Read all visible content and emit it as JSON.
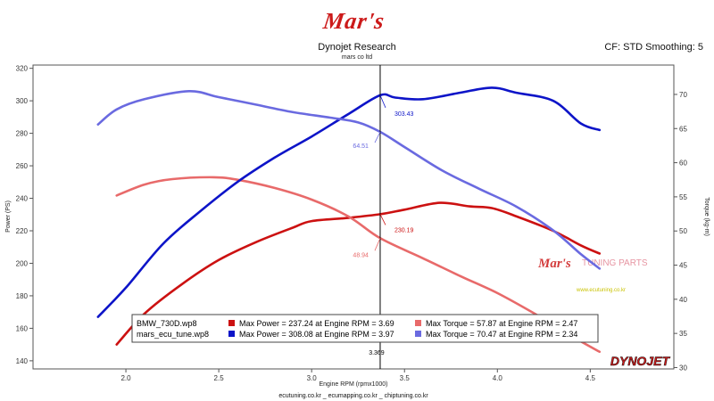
{
  "header": {
    "logo_text": "Mar's",
    "company": "Dynojet Research",
    "subtitle": "mars co ltd",
    "cf_info": "CF: STD Smoothing: 5"
  },
  "footer": {
    "websites": "ecutuning.co.kr _ ecumapping.co.kr _ chiptuning.co.kr"
  },
  "watermark": {
    "logo_text": "Mar's",
    "tuning_parts": "TUNING PARTS",
    "url": "www.ecutuning.co.kr",
    "brand": "DYNOJET"
  },
  "colors": {
    "stock_power": "#cc1111",
    "stock_torque": "#e86a6a",
    "tuned_power": "#0d14c8",
    "tuned_torque": "#6a6ae0",
    "cursor": "#000000",
    "brand_red": "#cc1a1a"
  },
  "chart_data": {
    "type": "line",
    "title": "Dynojet Research",
    "xlabel": "Engine RPM (rpmx1000)",
    "ylabel_left": "Power (PS)",
    "ylabel_right": "Torque (kg-m)",
    "xlim": [
      1.5,
      4.95
    ],
    "ylim_left": [
      135,
      322
    ],
    "ylim_right": [
      29.8,
      74.3
    ],
    "x_ticks": [
      2.0,
      2.5,
      3.0,
      3.5,
      4.0,
      4.5
    ],
    "x_tick_labels": [
      "2.0",
      "2.5",
      "3.0",
      "3.5",
      "4.0",
      "4.5"
    ],
    "y_left_ticks": [
      140,
      160,
      180,
      200,
      220,
      240,
      260,
      280,
      300,
      320
    ],
    "y_left_tick_labels": [
      "140",
      "160",
      "180",
      "200",
      "220",
      "240",
      "260",
      "280",
      "300",
      "320"
    ],
    "y_right_ticks": [
      30,
      35,
      40,
      45,
      50,
      55,
      60,
      65,
      70
    ],
    "y_right_tick_labels": [
      "30",
      "35",
      "40",
      "45",
      "50",
      "55",
      "60",
      "65",
      "70"
    ],
    "cursor": {
      "x": 3.369,
      "label": "3.369",
      "annotations": [
        {
          "text": "303.43",
          "series": "tuned_power"
        },
        {
          "text": "64.51",
          "series": "tuned_torque"
        },
        {
          "text": "230.19",
          "series": "stock_power"
        },
        {
          "text": "48.94",
          "series": "stock_torque"
        }
      ]
    },
    "legend": {
      "placement": "bottom-center",
      "rows": [
        {
          "file": "BMW_730D.wp8",
          "max_power": "Max Power = 237.24 at Engine RPM = 3.69",
          "max_torque": "Max Torque = 57.87 at Engine RPM = 2.47",
          "power_color": "#cc1111",
          "torque_color": "#e86a6a"
        },
        {
          "file": "mars_ecu_tune.wp8",
          "max_power": "Max Power = 308.08 at Engine RPM = 3.97",
          "max_torque": "Max Torque = 70.47 at Engine RPM = 2.34",
          "power_color": "#0d14c8",
          "torque_color": "#6a6ae0"
        }
      ]
    },
    "series": [
      {
        "key": "stock_power",
        "axis": "left",
        "color": "#cc1111",
        "x": [
          1.95,
          2.1,
          2.3,
          2.5,
          2.7,
          2.9,
          3.0,
          3.2,
          3.369,
          3.5,
          3.69,
          3.85,
          3.97,
          4.1,
          4.3,
          4.45,
          4.55
        ],
        "y": [
          150,
          169,
          187,
          202,
          213,
          222,
          226,
          228,
          230.19,
          233,
          237.24,
          235,
          234,
          229,
          220,
          211,
          206
        ]
      },
      {
        "key": "stock_torque",
        "axis": "right",
        "color": "#e86a6a",
        "x": [
          1.95,
          2.1,
          2.25,
          2.47,
          2.6,
          2.8,
          3.0,
          3.2,
          3.369,
          3.6,
          3.8,
          4.0,
          4.2,
          4.4,
          4.55
        ],
        "y": [
          55.2,
          56.8,
          57.6,
          57.87,
          57.5,
          56.3,
          54.6,
          52.1,
          48.94,
          46.0,
          43.4,
          40.9,
          37.9,
          34.6,
          32.3
        ]
      },
      {
        "key": "tuned_power",
        "axis": "left",
        "color": "#0d14c8",
        "x": [
          1.85,
          2.0,
          2.2,
          2.4,
          2.6,
          2.8,
          3.0,
          3.2,
          3.369,
          3.45,
          3.6,
          3.8,
          3.97,
          4.1,
          4.3,
          4.45,
          4.55
        ],
        "y": [
          167,
          185,
          212,
          232,
          250,
          265,
          278,
          292,
          303.43,
          302,
          301,
          305,
          308.08,
          305,
          300,
          286,
          282
        ]
      },
      {
        "key": "tuned_torque",
        "axis": "right",
        "color": "#6a6ae0",
        "x": [
          1.85,
          1.95,
          2.1,
          2.34,
          2.5,
          2.7,
          2.9,
          3.1,
          3.25,
          3.369,
          3.5,
          3.7,
          3.9,
          4.1,
          4.3,
          4.45,
          4.55
        ],
        "y": [
          65.6,
          67.8,
          69.3,
          70.47,
          69.6,
          68.5,
          67.4,
          66.6,
          65.9,
          64.51,
          62.3,
          58.9,
          56.2,
          53.6,
          50.1,
          46.6,
          44.5
        ]
      }
    ]
  }
}
